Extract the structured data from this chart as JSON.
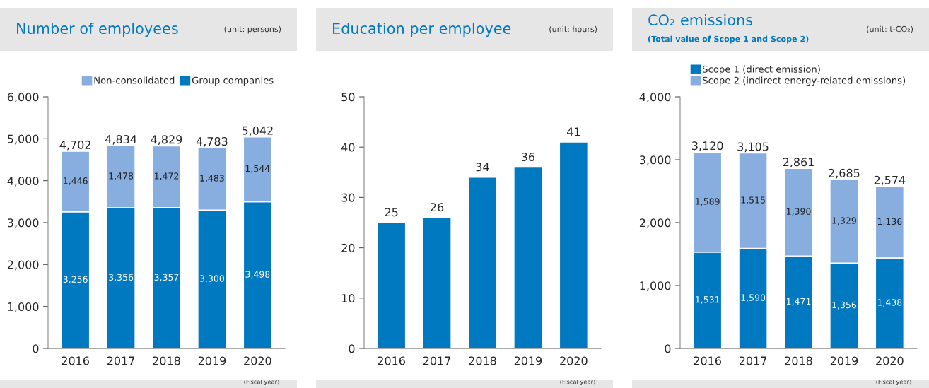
{
  "chart_data": [
    {
      "type": "bar",
      "title": "Number of employees",
      "annotations": [
        "(unit: persons)",
        "(Fiscal year)"
      ],
      "categories": [
        "2016",
        "2017",
        "2018",
        "2019",
        "2020"
      ],
      "stacked": true,
      "series": [
        {
          "name": "Group companies",
          "color": "#0079c1",
          "values": [
            3256,
            3356,
            3357,
            3300,
            3498
          ],
          "value_labels": [
            "3,256",
            "3,356",
            "3,357",
            "3,300",
            "3,498"
          ]
        },
        {
          "name": "Non-consolidated",
          "color": "#87aede",
          "values": [
            1446,
            1478,
            1472,
            1483,
            1544
          ],
          "value_labels": [
            "1,446",
            "1,478",
            "1,472",
            "1,483",
            "1,544"
          ]
        }
      ],
      "totals": [
        "4,702",
        "4,834",
        "4,829",
        "4,783",
        "5,042"
      ],
      "ylim": [
        0,
        6000
      ],
      "yticks": [
        {
          "value": 0,
          "label": "0"
        },
        {
          "value": 1000,
          "label": "1,000"
        },
        {
          "value": 2000,
          "label": "2,000"
        },
        {
          "value": 3000,
          "label": "3,000"
        },
        {
          "value": 4000,
          "label": "4,000"
        },
        {
          "value": 5000,
          "label": "5,000"
        },
        {
          "value": 6000,
          "label": "6,000"
        }
      ],
      "legend": "top right",
      "grid": false
    },
    {
      "type": "bar",
      "title": "Education per employee",
      "annotations": [
        "(unit: hours)",
        "(Fiscal year)"
      ],
      "categories": [
        "2016",
        "2017",
        "2018",
        "2019",
        "2020"
      ],
      "series": [
        {
          "color": "#0079c1",
          "values": [
            25,
            26,
            34,
            36,
            41
          ]
        }
      ],
      "data_labels": true,
      "ylim": [
        0,
        50
      ],
      "yticks": [
        0,
        10,
        20,
        30,
        40,
        50
      ],
      "grid": false
    },
    {
      "type": "bar",
      "title": "CO₂ emissions",
      "subtitle": "(Total value of Scope 1 and Scope 2)",
      "annotations": [
        "(unit: t-CO₂)",
        "(Fiscal year)"
      ],
      "categories": [
        "2016",
        "2017",
        "2018",
        "2019",
        "2020"
      ],
      "stacked": true,
      "series": [
        {
          "name": "Scope 1 (direct emission)",
          "color": "#0079c1",
          "values": [
            1531,
            1590,
            1471,
            1356,
            1438
          ],
          "value_labels": [
            "1,531",
            "1,590",
            "1,471",
            "1,356",
            "1,438"
          ]
        },
        {
          "name": "Scope 2 (indirect energy-related emissions)",
          "color": "#87aede",
          "values": [
            1589,
            1515,
            1390,
            1329,
            1136
          ],
          "value_labels": [
            "1,589",
            "1,515",
            "1,390",
            "1,329",
            "1,136"
          ]
        }
      ],
      "totals": [
        "3,120",
        "3,105",
        "2,861",
        "2,685",
        "2,574"
      ],
      "ylim": [
        0,
        4000
      ],
      "yticks": [
        {
          "value": 0,
          "label": "0"
        },
        {
          "value": 1000,
          "label": "1,000"
        },
        {
          "value": 2000,
          "label": "2,000"
        },
        {
          "value": 3000,
          "label": "3,000"
        },
        {
          "value": 4000,
          "label": "4,000"
        }
      ],
      "legend": "top right",
      "grid": false
    }
  ]
}
